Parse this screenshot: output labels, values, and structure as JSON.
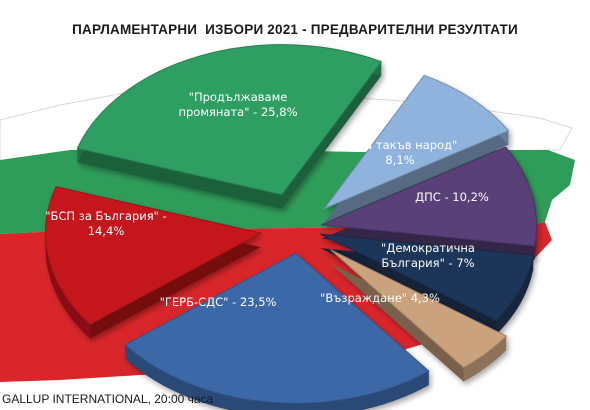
{
  "header": {
    "title": "ПАРЛАМЕНТАРНИ  ИЗБОРИ 2021 - ПРЕДВАРИТЕЛНИ РЕЗУЛТАТИ"
  },
  "footer": {
    "source": "GALLUP INTERNATIONAL, 20:00 часа"
  },
  "background": {
    "flag_colors": [
      "#ffffff",
      "#2f9d5a",
      "#d9262b"
    ]
  },
  "chart_data": {
    "type": "pie",
    "title": "ПАРЛАМЕНТАРНИ  ИЗБОРИ 2021 - ПРЕДВАРИТЕЛНИ РЕЗУЛТАТИ",
    "exploded": true,
    "style": "3d",
    "unit": "%",
    "slices": [
      {
        "label_lines": [
          "\"Продължаваме",
          "промяната\" - 25,8%"
        ],
        "name": "Продължаваме промяната",
        "value": 25.8,
        "color": "#2f9e63"
      },
      {
        "label_lines": [
          "\"Има такъв народ\"",
          "8,1%"
        ],
        "name": "Има такъв народ",
        "value": 8.1,
        "color": "#8fb3dc"
      },
      {
        "label_lines": [
          "ДПС - 10,2%"
        ],
        "name": "ДПС",
        "value": 10.2,
        "color": "#5a3f78"
      },
      {
        "label_lines": [
          "\"Демократична",
          "България\" - 7%"
        ],
        "name": "Демократична България",
        "value": 7.0,
        "color": "#1e3558"
      },
      {
        "label_lines": [
          "\"Възраждане\" 4,3%"
        ],
        "name": "Възраждане",
        "value": 4.3,
        "color": "#caa27d"
      },
      {
        "label_lines": [
          "\"ГЕРБ-СДС\" - 23,5%"
        ],
        "name": "ГЕРБ-СДС",
        "value": 23.5,
        "color": "#3d68a8"
      },
      {
        "label_lines": [
          "\"БСП за България\" -",
          "14,4%"
        ],
        "name": "БСП за България",
        "value": 14.4,
        "color": "#c4161c"
      }
    ]
  }
}
